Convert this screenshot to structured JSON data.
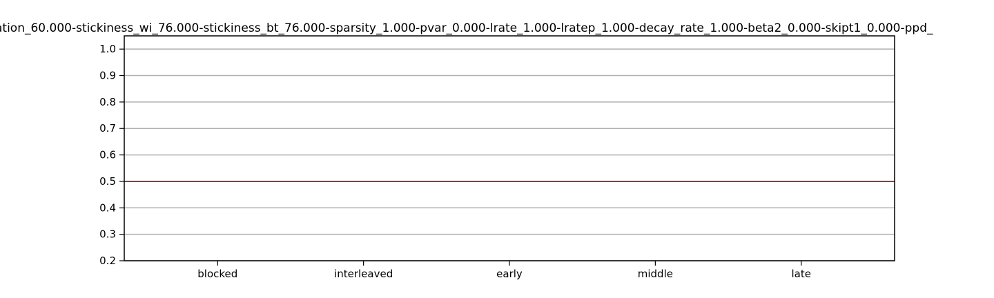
{
  "chart_data": {
    "type": "line",
    "title": "ation_60.000-stickiness_wi_76.000-stickiness_bt_76.000-sparsity_1.000-pvar_0.000-lrate_1.000-lratep_1.000-decay_rate_1.000-beta2_0.000-skipt1_0.000-ppd_",
    "categories": [
      "blocked",
      "interleaved",
      "early",
      "middle",
      "late"
    ],
    "ylim": [
      0.2,
      1.05
    ],
    "yticks": [
      "0.2",
      "0.3",
      "0.4",
      "0.5",
      "0.6",
      "0.7",
      "0.8",
      "0.9",
      "1.0"
    ],
    "grid": true,
    "grid_color": "#b0b0b0",
    "reference_line": {
      "y": 0.5,
      "color": "#e00000"
    },
    "series": []
  }
}
